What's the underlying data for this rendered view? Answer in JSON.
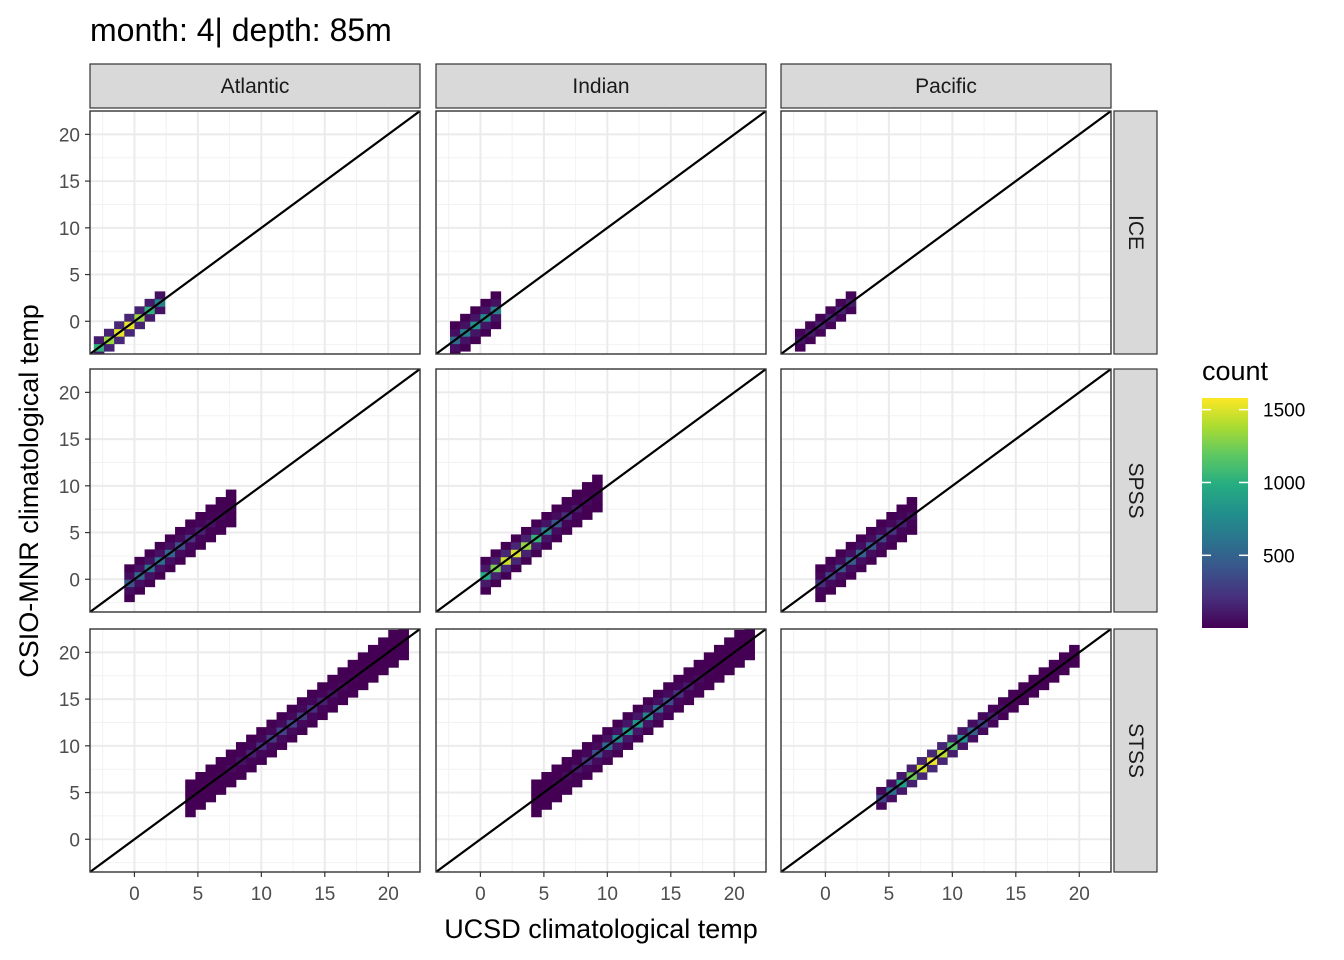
{
  "chart_data": {
    "type": "heatmap",
    "title": "month: 4| depth: 85m",
    "xlabel": "UCSD climatological temp",
    "ylabel": "CSIO-MNR climatological temp",
    "xlim": [
      -3.5,
      22.5
    ],
    "ylim": [
      -3.5,
      22.5
    ],
    "x_ticks": [
      0,
      5,
      10,
      15,
      20
    ],
    "y_ticks": [
      0,
      5,
      10,
      15,
      20
    ],
    "x_tick_labels": [
      "0",
      "5",
      "10",
      "15",
      "20"
    ],
    "y_tick_labels": [
      "0",
      "5",
      "10",
      "15",
      "20"
    ],
    "grid": true,
    "bin_width": 0.8,
    "reference_line": {
      "slope": 1,
      "intercept": 0
    },
    "columns": [
      "Atlantic",
      "Indian",
      "Pacific"
    ],
    "rows": [
      "ICE",
      "SPSS",
      "STSS"
    ],
    "legend": {
      "title": "count",
      "position": "right",
      "breaks": [
        1500,
        1000,
        500
      ],
      "break_labels": [
        "1500",
        "1000",
        "500"
      ],
      "min": 1,
      "max": 1580
    },
    "panels": [
      {
        "column": "Atlantic",
        "row": "ICE",
        "x_range": [
          -3,
          2
        ],
        "band_half_width": 0.9,
        "peak_at": -0.8,
        "peak_count": 1550
      },
      {
        "column": "Indian",
        "row": "ICE",
        "x_range": [
          -2,
          1.5
        ],
        "band_half_width": 1.6,
        "peak_at": 0,
        "peak_count": 800
      },
      {
        "column": "Pacific",
        "row": "ICE",
        "x_range": [
          -2,
          2.3
        ],
        "band_half_width": 0.8,
        "peak_at": 0.5,
        "peak_count": 160
      },
      {
        "column": "Atlantic",
        "row": "SPSS",
        "x_range": [
          -0.5,
          7.8
        ],
        "band_half_width": 1.8,
        "peak_at": 1.5,
        "peak_count": 600
      },
      {
        "column": "Indian",
        "row": "SPSS",
        "x_range": [
          0,
          9.5
        ],
        "band_half_width": 1.7,
        "peak_at": 2.5,
        "peak_count": 1500
      },
      {
        "column": "Pacific",
        "row": "SPSS",
        "x_range": [
          -0.8,
          7
        ],
        "band_half_width": 1.6,
        "peak_at": 2.5,
        "peak_count": 500
      },
      {
        "column": "Atlantic",
        "row": "STSS",
        "x_range": [
          4.8,
          21
        ],
        "band_half_width": 2.2,
        "peak_at": 12,
        "peak_count": 320
      },
      {
        "column": "Indian",
        "row": "STSS",
        "x_range": [
          4.2,
          21
        ],
        "band_half_width": 1.6,
        "peak_at": 12,
        "peak_count": 850
      },
      {
        "column": "Pacific",
        "row": "STSS",
        "x_range": [
          4,
          20
        ],
        "band_half_width": 1.3,
        "peak_at": 8.3,
        "peak_count": 1550
      }
    ]
  }
}
